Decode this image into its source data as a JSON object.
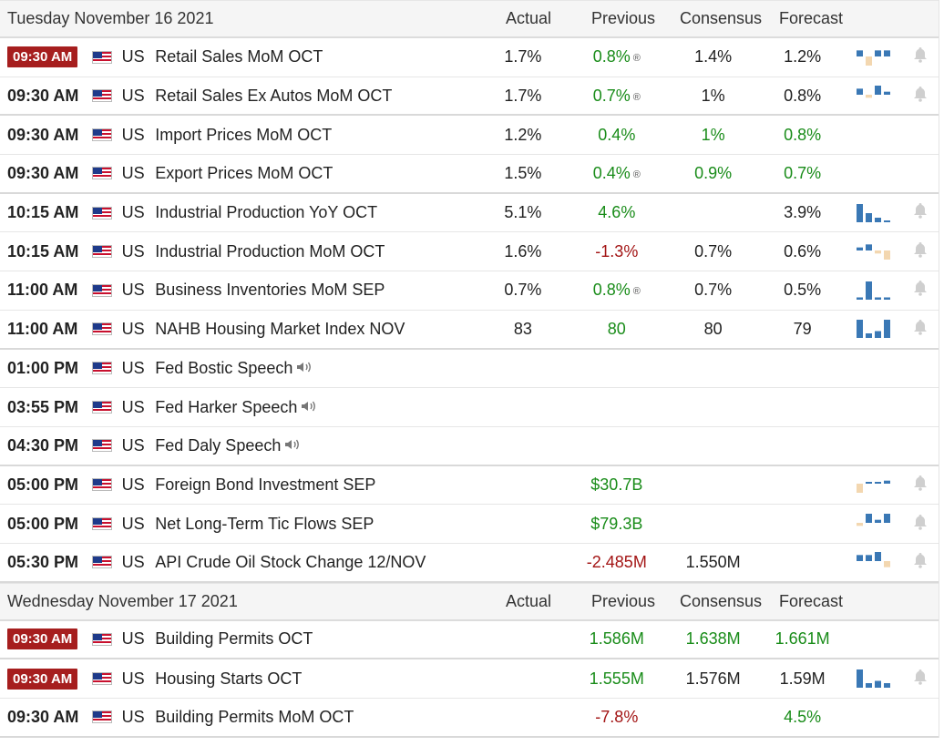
{
  "colors": {
    "badge": "#a61e1e",
    "positive": "#198c19",
    "negative": "#a31515",
    "chart_blue": "#3a78b5",
    "chart_tan": "#f3d7b0"
  },
  "columns": {
    "actual": "Actual",
    "previous": "Previous",
    "consensus": "Consensus",
    "forecast": "Forecast"
  },
  "sections": [
    {
      "date": "Tuesday November 16 2021",
      "rows": [
        {
          "time": "09:30 AM",
          "live": true,
          "country": "US",
          "event": "Retail Sales MoM OCT",
          "actual": "1.7%",
          "previous": "0.8%",
          "prev_color": "g",
          "revised": true,
          "consensus": "1.4%",
          "cons_color": "",
          "forecast": "1.2%",
          "fc_color": "",
          "chart": [
            {
              "v": 2,
              "c": "b"
            },
            {
              "v": -3,
              "c": "t"
            },
            {
              "v": 2,
              "c": "b"
            },
            {
              "v": 2,
              "c": "b"
            }
          ],
          "bell": true
        },
        {
          "time": "09:30 AM",
          "live": false,
          "country": "US",
          "event": "Retail Sales Ex Autos MoM OCT",
          "actual": "1.7%",
          "previous": "0.7%",
          "prev_color": "g",
          "revised": true,
          "consensus": "1%",
          "cons_color": "",
          "forecast": "0.8%",
          "fc_color": "",
          "chart": [
            {
              "v": 2,
              "c": "b"
            },
            {
              "v": -1,
              "c": "t"
            },
            {
              "v": 3,
              "c": "b"
            },
            {
              "v": 1,
              "c": "b"
            }
          ],
          "bell": true
        },
        {
          "time": "09:30 AM",
          "live": false,
          "country": "US",
          "event": "Import Prices MoM OCT",
          "actual": "1.2%",
          "previous": "0.4%",
          "prev_color": "g",
          "revised": false,
          "consensus": "1%",
          "cons_color": "g",
          "forecast": "0.8%",
          "fc_color": "g",
          "chart": [],
          "bell": false
        },
        {
          "time": "09:30 AM",
          "live": false,
          "country": "US",
          "event": "Export Prices MoM OCT",
          "actual": "1.5%",
          "previous": "0.4%",
          "prev_color": "g",
          "revised": true,
          "consensus": "0.9%",
          "cons_color": "g",
          "forecast": "0.7%",
          "fc_color": "g",
          "chart": [],
          "bell": false
        },
        {
          "time": "10:15 AM",
          "live": false,
          "country": "US",
          "event": "Industrial Production YoY OCT",
          "actual": "5.1%",
          "previous": "4.6%",
          "prev_color": "g",
          "revised": false,
          "consensus": "",
          "cons_color": "",
          "forecast": "3.9%",
          "fc_color": "",
          "chart": [
            {
              "v": 4,
              "c": "b"
            },
            {
              "v": 2,
              "c": "b"
            },
            {
              "v": 1,
              "c": "b"
            },
            {
              "v": 0.3,
              "c": "b"
            }
          ],
          "bell": true
        },
        {
          "time": "10:15 AM",
          "live": false,
          "country": "US",
          "event": "Industrial Production MoM OCT",
          "actual": "1.6%",
          "previous": "-1.3%",
          "prev_color": "r",
          "revised": false,
          "consensus": "0.7%",
          "cons_color": "",
          "forecast": "0.6%",
          "fc_color": "",
          "chart": [
            {
              "v": 0.5,
              "c": "b"
            },
            {
              "v": 1,
              "c": "b"
            },
            {
              "v": -0.5,
              "c": "t"
            },
            {
              "v": -1.5,
              "c": "t"
            }
          ],
          "bell": true
        },
        {
          "time": "11:00 AM",
          "live": false,
          "country": "US",
          "event": "Business Inventories MoM SEP",
          "actual": "0.7%",
          "previous": "0.8%",
          "prev_color": "g",
          "revised": true,
          "consensus": "0.7%",
          "cons_color": "",
          "forecast": "0.5%",
          "fc_color": "",
          "chart": [
            {
              "v": 0.5,
              "c": "b"
            },
            {
              "v": 4,
              "c": "b"
            },
            {
              "v": 0.5,
              "c": "b"
            },
            {
              "v": 0.5,
              "c": "b"
            }
          ],
          "bell": true
        },
        {
          "time": "11:00 AM",
          "live": false,
          "country": "US",
          "event": "NAHB Housing Market Index NOV",
          "actual": "83",
          "previous": "80",
          "prev_color": "g",
          "revised": false,
          "consensus": "80",
          "cons_color": "",
          "forecast": "79",
          "fc_color": "",
          "chart": [
            {
              "v": 4,
              "c": "b"
            },
            {
              "v": 1,
              "c": "b"
            },
            {
              "v": 1.5,
              "c": "b"
            },
            {
              "v": 4,
              "c": "b"
            }
          ],
          "bell": true
        },
        {
          "time": "01:00 PM",
          "live": false,
          "country": "US",
          "event": "Fed Bostic Speech",
          "speech": true,
          "actual": "",
          "previous": "",
          "prev_color": "",
          "revised": false,
          "consensus": "",
          "cons_color": "",
          "forecast": "",
          "fc_color": "",
          "chart": [],
          "bell": false
        },
        {
          "time": "03:55 PM",
          "live": false,
          "country": "US",
          "event": "Fed Harker Speech",
          "speech": true,
          "actual": "",
          "previous": "",
          "prev_color": "",
          "revised": false,
          "consensus": "",
          "cons_color": "",
          "forecast": "",
          "fc_color": "",
          "chart": [],
          "bell": false
        },
        {
          "time": "04:30 PM",
          "live": false,
          "country": "US",
          "event": "Fed Daly Speech",
          "speech": true,
          "actual": "",
          "previous": "",
          "prev_color": "",
          "revised": false,
          "consensus": "",
          "cons_color": "",
          "forecast": "",
          "fc_color": "",
          "chart": [],
          "bell": false
        },
        {
          "time": "05:00 PM",
          "live": false,
          "country": "US",
          "event": "Foreign Bond Investment SEP",
          "actual": "",
          "previous": "$30.7B",
          "prev_color": "g",
          "revised": false,
          "consensus": "",
          "cons_color": "",
          "forecast": "",
          "fc_color": "",
          "chart": [
            {
              "v": -3,
              "c": "t"
            },
            {
              "v": 0.5,
              "c": "b"
            },
            {
              "v": 0.5,
              "c": "b"
            },
            {
              "v": 1,
              "c": "b"
            }
          ],
          "bell": true
        },
        {
          "time": "05:00 PM",
          "live": false,
          "country": "US",
          "event": "Net Long-Term Tic Flows SEP",
          "actual": "",
          "previous": "$79.3B",
          "prev_color": "g",
          "revised": false,
          "consensus": "",
          "cons_color": "",
          "forecast": "",
          "fc_color": "",
          "chart": [
            {
              "v": -1,
              "c": "t"
            },
            {
              "v": 3,
              "c": "b"
            },
            {
              "v": 1,
              "c": "b"
            },
            {
              "v": 3,
              "c": "b"
            }
          ],
          "bell": true
        },
        {
          "time": "05:30 PM",
          "live": false,
          "country": "US",
          "event": "API Crude Oil Stock Change 12/NOV",
          "actual": "",
          "previous": "-2.485M",
          "prev_color": "r",
          "revised": false,
          "consensus": "1.550M",
          "cons_color": "",
          "forecast": "",
          "fc_color": "",
          "chart": [
            {
              "v": 2,
              "c": "b"
            },
            {
              "v": 2,
              "c": "b"
            },
            {
              "v": 3,
              "c": "b"
            },
            {
              "v": -2,
              "c": "t"
            }
          ],
          "bell": true
        }
      ]
    },
    {
      "date": "Wednesday November 17 2021",
      "rows": [
        {
          "time": "09:30 AM",
          "live": true,
          "country": "US",
          "event": "Building Permits OCT",
          "actual": "",
          "previous": "1.586M",
          "prev_color": "g",
          "revised": false,
          "consensus": "1.638M",
          "cons_color": "g",
          "forecast": "1.661M",
          "fc_color": "g",
          "chart": [],
          "bell": false
        },
        {
          "time": "09:30 AM",
          "live": true,
          "country": "US",
          "event": "Housing Starts OCT",
          "actual": "",
          "previous": "1.555M",
          "prev_color": "g",
          "revised": false,
          "consensus": "1.576M",
          "cons_color": "",
          "forecast": "1.59M",
          "fc_color": "",
          "chart": [
            {
              "v": 4,
              "c": "b"
            },
            {
              "v": 1,
              "c": "b"
            },
            {
              "v": 1.5,
              "c": "b"
            },
            {
              "v": 1,
              "c": "b"
            }
          ],
          "bell": true
        },
        {
          "time": "09:30 AM",
          "live": false,
          "country": "US",
          "event": "Building Permits MoM OCT",
          "actual": "",
          "previous": "-7.8%",
          "prev_color": "r",
          "revised": false,
          "consensus": "",
          "cons_color": "",
          "forecast": "4.5%",
          "fc_color": "g",
          "chart": [],
          "bell": false
        }
      ]
    }
  ]
}
